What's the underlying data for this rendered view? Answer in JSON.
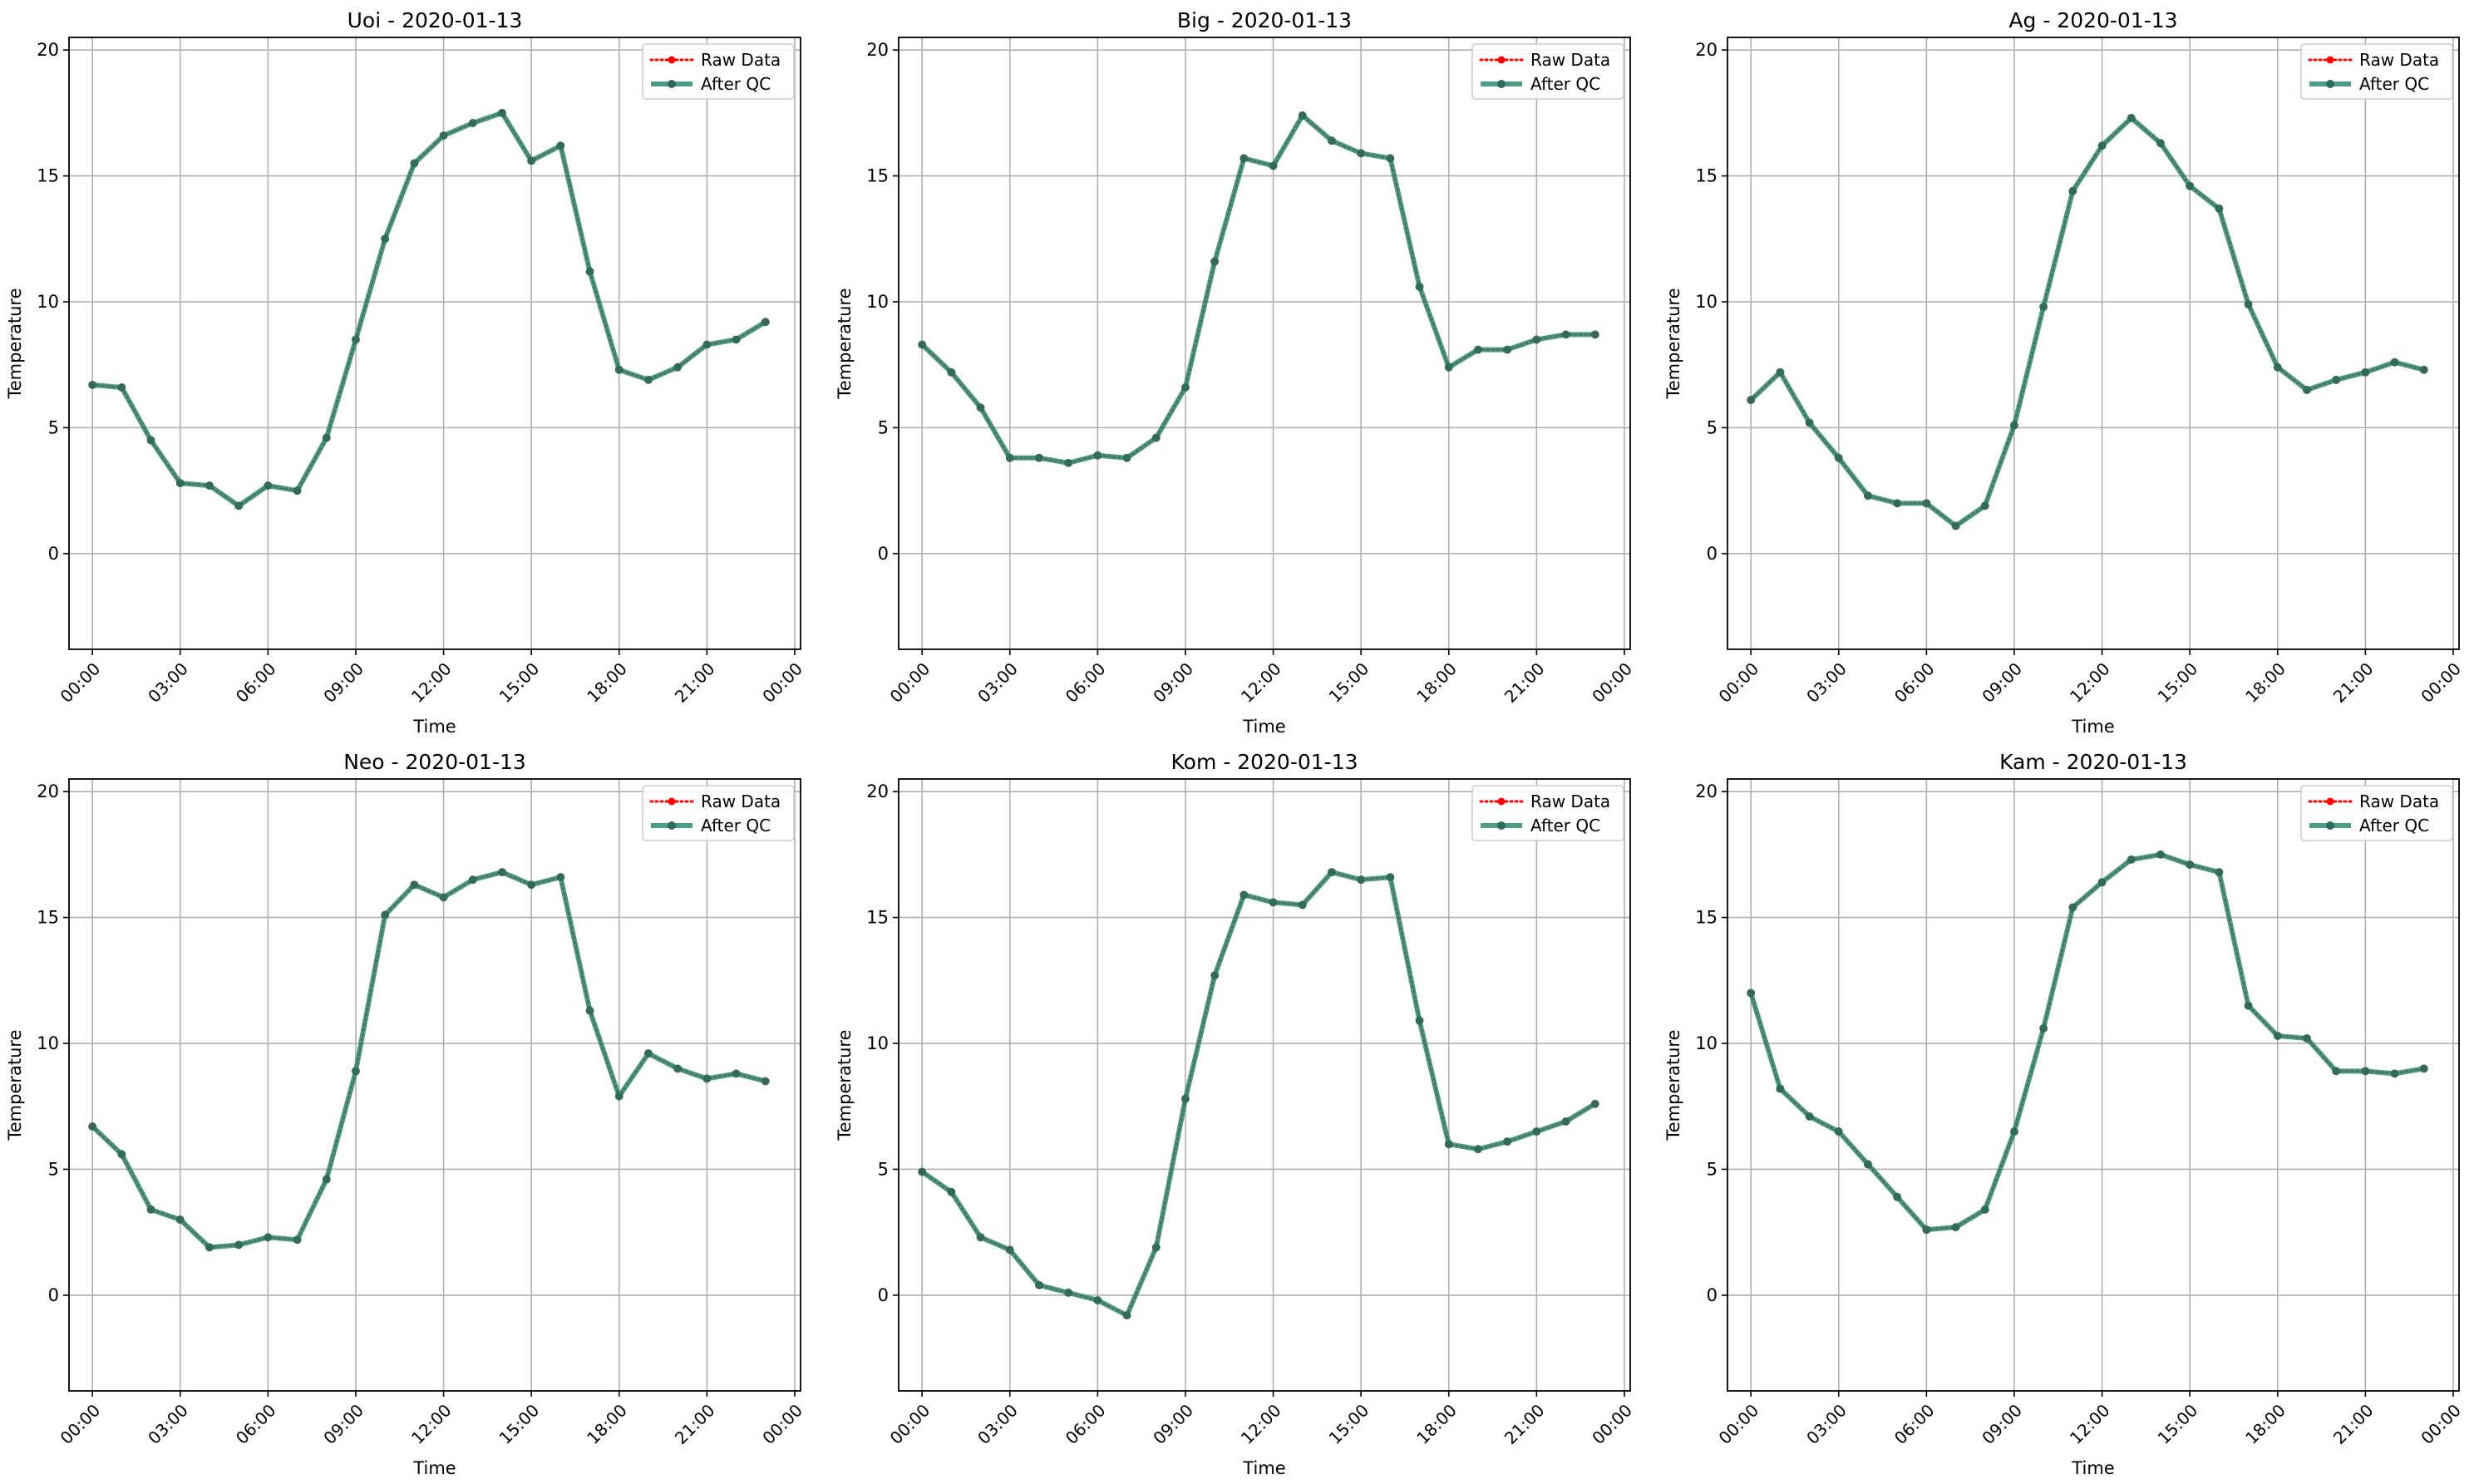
{
  "figure": {
    "colors": {
      "raw": "#ff0000",
      "qc": "#2e8b70",
      "grid": "#b0b0b0",
      "axis": "#000000",
      "marker": "#2e6b5a"
    },
    "legend_labels": [
      "Raw Data",
      "After QC"
    ],
    "legend_placement": "upper-right"
  },
  "chart_data": [
    {
      "type": "line",
      "title": "Uoi - 2020-01-13",
      "xlabel": "Time",
      "ylabel": "Temperature",
      "xlim": [
        -0.8,
        24.2
      ],
      "ylim": [
        -3.8,
        20.5
      ],
      "xticks": [
        0,
        3,
        6,
        9,
        12,
        15,
        18,
        21,
        24
      ],
      "xtick_labels": [
        "00:00",
        "03:00",
        "06:00",
        "09:00",
        "12:00",
        "15:00",
        "18:00",
        "21:00",
        "00:00"
      ],
      "yticks": [
        0,
        5,
        10,
        15,
        20
      ],
      "grid": true,
      "legend": "upper-right",
      "x": [
        "00:00",
        "01:00",
        "02:00",
        "03:00",
        "04:00",
        "05:00",
        "06:00",
        "07:00",
        "08:00",
        "09:00",
        "10:00",
        "11:00",
        "12:00",
        "13:00",
        "14:00",
        "15:00",
        "16:00",
        "17:00",
        "18:00",
        "19:00",
        "20:00",
        "21:00",
        "22:00",
        "23:00"
      ],
      "series": [
        {
          "name": "Raw Data",
          "values": [
            6.7,
            6.6,
            4.5,
            2.8,
            2.7,
            1.9,
            2.7,
            2.5,
            4.6,
            8.5,
            12.5,
            15.5,
            16.6,
            17.1,
            17.5,
            15.6,
            16.2,
            11.2,
            7.3,
            6.9,
            7.4,
            8.3,
            8.5,
            9.2
          ]
        },
        {
          "name": "After QC",
          "values": [
            6.7,
            6.6,
            4.5,
            2.8,
            2.7,
            1.9,
            2.7,
            2.5,
            4.6,
            8.5,
            12.5,
            15.5,
            16.6,
            17.1,
            17.5,
            15.6,
            16.2,
            11.2,
            7.3,
            6.9,
            7.4,
            8.3,
            8.5,
            9.2
          ]
        }
      ]
    },
    {
      "type": "line",
      "title": "Big - 2020-01-13",
      "xlabel": "Time",
      "ylabel": "Temperature",
      "xlim": [
        -0.8,
        24.2
      ],
      "ylim": [
        -3.8,
        20.5
      ],
      "xticks": [
        0,
        3,
        6,
        9,
        12,
        15,
        18,
        21,
        24
      ],
      "xtick_labels": [
        "00:00",
        "03:00",
        "06:00",
        "09:00",
        "12:00",
        "15:00",
        "18:00",
        "21:00",
        "00:00"
      ],
      "yticks": [
        0,
        5,
        10,
        15,
        20
      ],
      "grid": true,
      "legend": "upper-right",
      "x": [
        "00:00",
        "01:00",
        "02:00",
        "03:00",
        "04:00",
        "05:00",
        "06:00",
        "07:00",
        "08:00",
        "09:00",
        "10:00",
        "11:00",
        "12:00",
        "13:00",
        "14:00",
        "15:00",
        "16:00",
        "17:00",
        "18:00",
        "19:00",
        "20:00",
        "21:00",
        "22:00",
        "23:00"
      ],
      "series": [
        {
          "name": "Raw Data",
          "values": [
            8.3,
            7.2,
            5.8,
            3.8,
            3.8,
            3.6,
            3.9,
            3.8,
            4.6,
            6.6,
            11.6,
            15.7,
            15.4,
            17.4,
            16.4,
            15.9,
            15.7,
            10.6,
            7.4,
            8.1,
            8.1,
            8.5,
            8.7,
            8.7
          ]
        },
        {
          "name": "After QC",
          "values": [
            8.3,
            7.2,
            5.8,
            3.8,
            3.8,
            3.6,
            3.9,
            3.8,
            4.6,
            6.6,
            11.6,
            15.7,
            15.4,
            17.4,
            16.4,
            15.9,
            15.7,
            10.6,
            7.4,
            8.1,
            8.1,
            8.5,
            8.7,
            8.7
          ]
        }
      ]
    },
    {
      "type": "line",
      "title": "Ag - 2020-01-13",
      "xlabel": "Time",
      "ylabel": "Temperature",
      "xlim": [
        -0.8,
        24.2
      ],
      "ylim": [
        -3.8,
        20.5
      ],
      "xticks": [
        0,
        3,
        6,
        9,
        12,
        15,
        18,
        21,
        24
      ],
      "xtick_labels": [
        "00:00",
        "03:00",
        "06:00",
        "09:00",
        "12:00",
        "15:00",
        "18:00",
        "21:00",
        "00:00"
      ],
      "yticks": [
        0,
        5,
        10,
        15,
        20
      ],
      "grid": true,
      "legend": "upper-right",
      "x": [
        "00:00",
        "01:00",
        "02:00",
        "03:00",
        "04:00",
        "05:00",
        "06:00",
        "07:00",
        "08:00",
        "09:00",
        "10:00",
        "11:00",
        "12:00",
        "13:00",
        "14:00",
        "15:00",
        "16:00",
        "17:00",
        "18:00",
        "19:00",
        "20:00",
        "21:00",
        "22:00",
        "23:00"
      ],
      "series": [
        {
          "name": "Raw Data",
          "values": [
            6.1,
            7.2,
            5.2,
            3.8,
            2.3,
            2.0,
            2.0,
            1.1,
            1.9,
            5.1,
            9.8,
            14.4,
            16.2,
            17.3,
            16.3,
            14.6,
            13.7,
            9.9,
            7.4,
            6.5,
            6.9,
            7.2,
            7.6,
            7.3
          ]
        },
        {
          "name": "After QC",
          "values": [
            6.1,
            7.2,
            5.2,
            3.8,
            2.3,
            2.0,
            2.0,
            1.1,
            1.9,
            5.1,
            9.8,
            14.4,
            16.2,
            17.3,
            16.3,
            14.6,
            13.7,
            9.9,
            7.4,
            6.5,
            6.9,
            7.2,
            7.6,
            7.3
          ]
        }
      ]
    },
    {
      "type": "line",
      "title": "Neo - 2020-01-13",
      "xlabel": "Time",
      "ylabel": "Temperature",
      "xlim": [
        -0.8,
        24.2
      ],
      "ylim": [
        -3.8,
        20.5
      ],
      "xticks": [
        0,
        3,
        6,
        9,
        12,
        15,
        18,
        21,
        24
      ],
      "xtick_labels": [
        "00:00",
        "03:00",
        "06:00",
        "09:00",
        "12:00",
        "15:00",
        "18:00",
        "21:00",
        "00:00"
      ],
      "yticks": [
        0,
        5,
        10,
        15,
        20
      ],
      "grid": true,
      "legend": "upper-right",
      "x": [
        "00:00",
        "01:00",
        "02:00",
        "03:00",
        "04:00",
        "05:00",
        "06:00",
        "07:00",
        "08:00",
        "09:00",
        "10:00",
        "11:00",
        "12:00",
        "13:00",
        "14:00",
        "15:00",
        "16:00",
        "17:00",
        "18:00",
        "19:00",
        "20:00",
        "21:00",
        "22:00",
        "23:00"
      ],
      "series": [
        {
          "name": "Raw Data",
          "values": [
            6.7,
            5.6,
            3.4,
            3.0,
            1.9,
            2.0,
            2.3,
            2.2,
            4.6,
            8.9,
            15.1,
            16.3,
            15.8,
            16.5,
            16.8,
            16.3,
            16.6,
            11.3,
            7.9,
            9.6,
            9.0,
            8.6,
            8.8,
            8.5
          ]
        },
        {
          "name": "After QC",
          "values": [
            6.7,
            5.6,
            3.4,
            3.0,
            1.9,
            2.0,
            2.3,
            2.2,
            4.6,
            8.9,
            15.1,
            16.3,
            15.8,
            16.5,
            16.8,
            16.3,
            16.6,
            11.3,
            7.9,
            9.6,
            9.0,
            8.6,
            8.8,
            8.5
          ]
        }
      ]
    },
    {
      "type": "line",
      "title": "Kom - 2020-01-13",
      "xlabel": "Time",
      "ylabel": "Temperature",
      "xlim": [
        -0.8,
        24.2
      ],
      "ylim": [
        -3.8,
        20.5
      ],
      "xticks": [
        0,
        3,
        6,
        9,
        12,
        15,
        18,
        21,
        24
      ],
      "xtick_labels": [
        "00:00",
        "03:00",
        "06:00",
        "09:00",
        "12:00",
        "15:00",
        "18:00",
        "21:00",
        "00:00"
      ],
      "yticks": [
        0,
        5,
        10,
        15,
        20
      ],
      "grid": true,
      "legend": "upper-right",
      "x": [
        "00:00",
        "01:00",
        "02:00",
        "03:00",
        "04:00",
        "05:00",
        "06:00",
        "07:00",
        "08:00",
        "09:00",
        "10:00",
        "11:00",
        "12:00",
        "13:00",
        "14:00",
        "15:00",
        "16:00",
        "17:00",
        "18:00",
        "19:00",
        "20:00",
        "21:00",
        "22:00",
        "23:00"
      ],
      "series": [
        {
          "name": "Raw Data",
          "values": [
            4.9,
            4.1,
            2.3,
            1.8,
            0.4,
            0.1,
            -0.2,
            -0.8,
            1.9,
            7.8,
            12.7,
            15.9,
            15.6,
            15.5,
            16.8,
            16.5,
            16.6,
            10.9,
            6.0,
            5.8,
            6.1,
            6.5,
            6.9,
            7.6
          ]
        },
        {
          "name": "After QC",
          "values": [
            4.9,
            4.1,
            2.3,
            1.8,
            0.4,
            0.1,
            -0.2,
            -0.8,
            1.9,
            7.8,
            12.7,
            15.9,
            15.6,
            15.5,
            16.8,
            16.5,
            16.6,
            10.9,
            6.0,
            5.8,
            6.1,
            6.5,
            6.9,
            7.6
          ]
        }
      ]
    },
    {
      "type": "line",
      "title": "Kam - 2020-01-13",
      "xlabel": "Time",
      "ylabel": "Temperature",
      "xlim": [
        -0.8,
        24.2
      ],
      "ylim": [
        -3.8,
        20.5
      ],
      "xticks": [
        0,
        3,
        6,
        9,
        12,
        15,
        18,
        21,
        24
      ],
      "xtick_labels": [
        "00:00",
        "03:00",
        "06:00",
        "09:00",
        "12:00",
        "15:00",
        "18:00",
        "21:00",
        "00:00"
      ],
      "yticks": [
        0,
        5,
        10,
        15,
        20
      ],
      "grid": true,
      "legend": "upper-right",
      "x": [
        "00:00",
        "01:00",
        "02:00",
        "03:00",
        "04:00",
        "05:00",
        "06:00",
        "07:00",
        "08:00",
        "09:00",
        "10:00",
        "11:00",
        "12:00",
        "13:00",
        "14:00",
        "15:00",
        "16:00",
        "17:00",
        "18:00",
        "19:00",
        "20:00",
        "21:00",
        "22:00",
        "23:00"
      ],
      "series": [
        {
          "name": "Raw Data",
          "values": [
            12.0,
            8.2,
            7.1,
            6.5,
            5.2,
            3.9,
            2.6,
            2.7,
            3.4,
            6.5,
            10.6,
            15.4,
            16.4,
            17.3,
            17.5,
            17.1,
            16.8,
            11.5,
            10.3,
            10.2,
            8.9,
            8.9,
            8.8,
            9.0
          ]
        },
        {
          "name": "After QC",
          "values": [
            12.0,
            8.2,
            7.1,
            6.5,
            5.2,
            3.9,
            2.6,
            2.7,
            3.4,
            6.5,
            10.6,
            15.4,
            16.4,
            17.3,
            17.5,
            17.1,
            16.8,
            11.5,
            10.3,
            10.2,
            8.9,
            8.9,
            8.8,
            9.0
          ]
        }
      ]
    }
  ]
}
